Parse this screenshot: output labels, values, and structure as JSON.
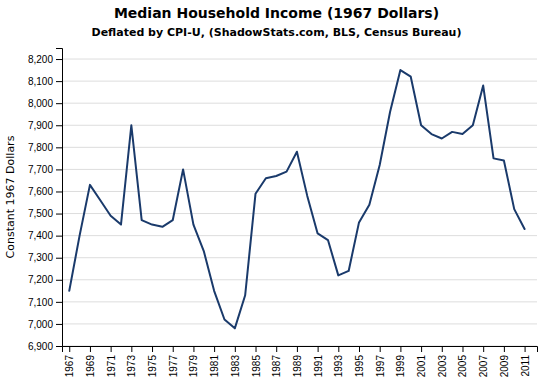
{
  "chart_data": {
    "type": "line",
    "title": "Median Household Income (1967 Dollars)",
    "subtitle": "Deflated by CPI-U, (ShadowStats.com, BLS, Census Bureau)",
    "y_label": "Constant 1967 Dollars",
    "x": [
      1967,
      1968,
      1969,
      1970,
      1971,
      1972,
      1973,
      1974,
      1975,
      1976,
      1977,
      1978,
      1979,
      1980,
      1981,
      1982,
      1983,
      1984,
      1985,
      1986,
      1987,
      1988,
      1989,
      1990,
      1991,
      1992,
      1993,
      1994,
      1995,
      1996,
      1997,
      1998,
      1999,
      2000,
      2001,
      2002,
      2003,
      2004,
      2005,
      2006,
      2007,
      2008,
      2009,
      2010,
      2011
    ],
    "values": [
      7150,
      7400,
      7630,
      7560,
      7490,
      7450,
      7900,
      7470,
      7450,
      7440,
      7470,
      7700,
      7450,
      7330,
      7150,
      7020,
      6980,
      7130,
      7590,
      7660,
      7670,
      7690,
      7780,
      7580,
      7410,
      7380,
      7220,
      7240,
      7460,
      7540,
      7720,
      7960,
      8150,
      8120,
      7900,
      7860,
      7840,
      7870,
      7860,
      7900,
      8080,
      7750,
      7740,
      7520,
      7430
    ],
    "color": "#1a3a6b",
    "xlim": [
      1966.3,
      2012.2
    ],
    "xticks": [
      1967,
      1969,
      1971,
      1973,
      1975,
      1977,
      1979,
      1981,
      1983,
      1985,
      1987,
      1989,
      1991,
      1993,
      1995,
      1997,
      1999,
      2001,
      2003,
      2005,
      2007,
      2009,
      2011
    ],
    "ylim": [
      6900,
      8250
    ],
    "yticks": [
      {
        "value": 6900,
        "label": "6,900"
      },
      {
        "value": 7000,
        "label": "7,000"
      },
      {
        "value": 7100,
        "label": "7,100"
      },
      {
        "value": 7200,
        "label": "7,200"
      },
      {
        "value": 7300,
        "label": "7,300"
      },
      {
        "value": 7400,
        "label": "7,400"
      },
      {
        "value": 7500,
        "label": "7,500"
      },
      {
        "value": 7600,
        "label": "7,600"
      },
      {
        "value": 7700,
        "label": "7,700"
      },
      {
        "value": 7800,
        "label": "7,800"
      },
      {
        "value": 7900,
        "label": "7,900"
      },
      {
        "value": 8000,
        "label": "8,000"
      },
      {
        "value": 8100,
        "label": "8,100"
      },
      {
        "value": 8200,
        "label": "8,200"
      }
    ],
    "grid": true
  }
}
